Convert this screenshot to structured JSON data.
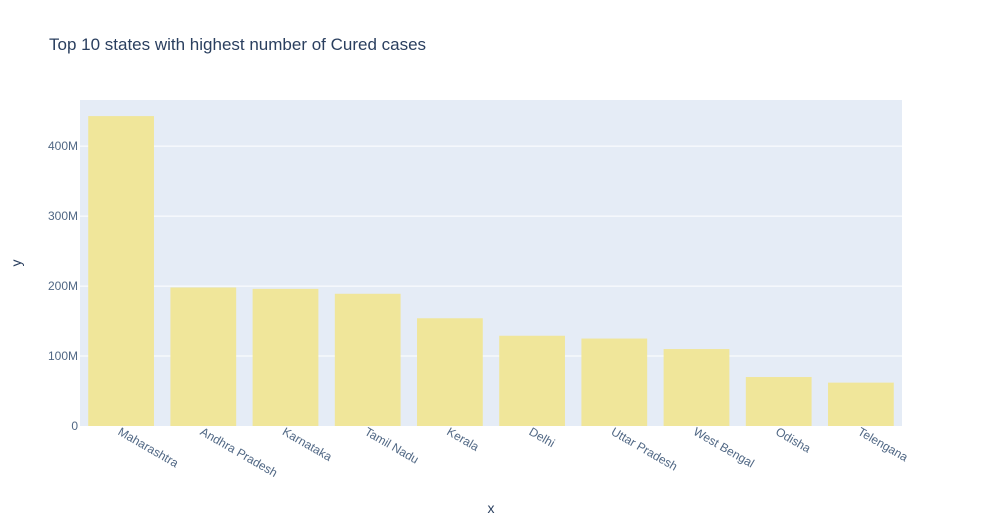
{
  "colors": {
    "bar": "#f0e69a",
    "plot_bg": "#e5ecf6",
    "grid": "#ffffff",
    "text": "#2a3f5f",
    "tick_text": "#506784"
  },
  "chart_data": {
    "type": "bar",
    "title": "Top 10 states with highest number of Cured cases",
    "xlabel": "x",
    "ylabel": "y",
    "categories": [
      "Maharashtra",
      "Andhra Pradesh",
      "Karnataka",
      "Tamil Nadu",
      "Kerala",
      "Delhi",
      "Uttar Pradesh",
      "West Bengal",
      "Odisha",
      "Telengana"
    ],
    "values": [
      443,
      198,
      196,
      189,
      154,
      129,
      125,
      110,
      70,
      62
    ],
    "value_unit": "M",
    "ylim": [
      0,
      466
    ],
    "yticks": [
      0,
      100,
      200,
      300,
      400
    ],
    "ytick_labels": [
      "0",
      "100M",
      "200M",
      "300M",
      "400M"
    ],
    "grid": true,
    "legend": "none"
  }
}
